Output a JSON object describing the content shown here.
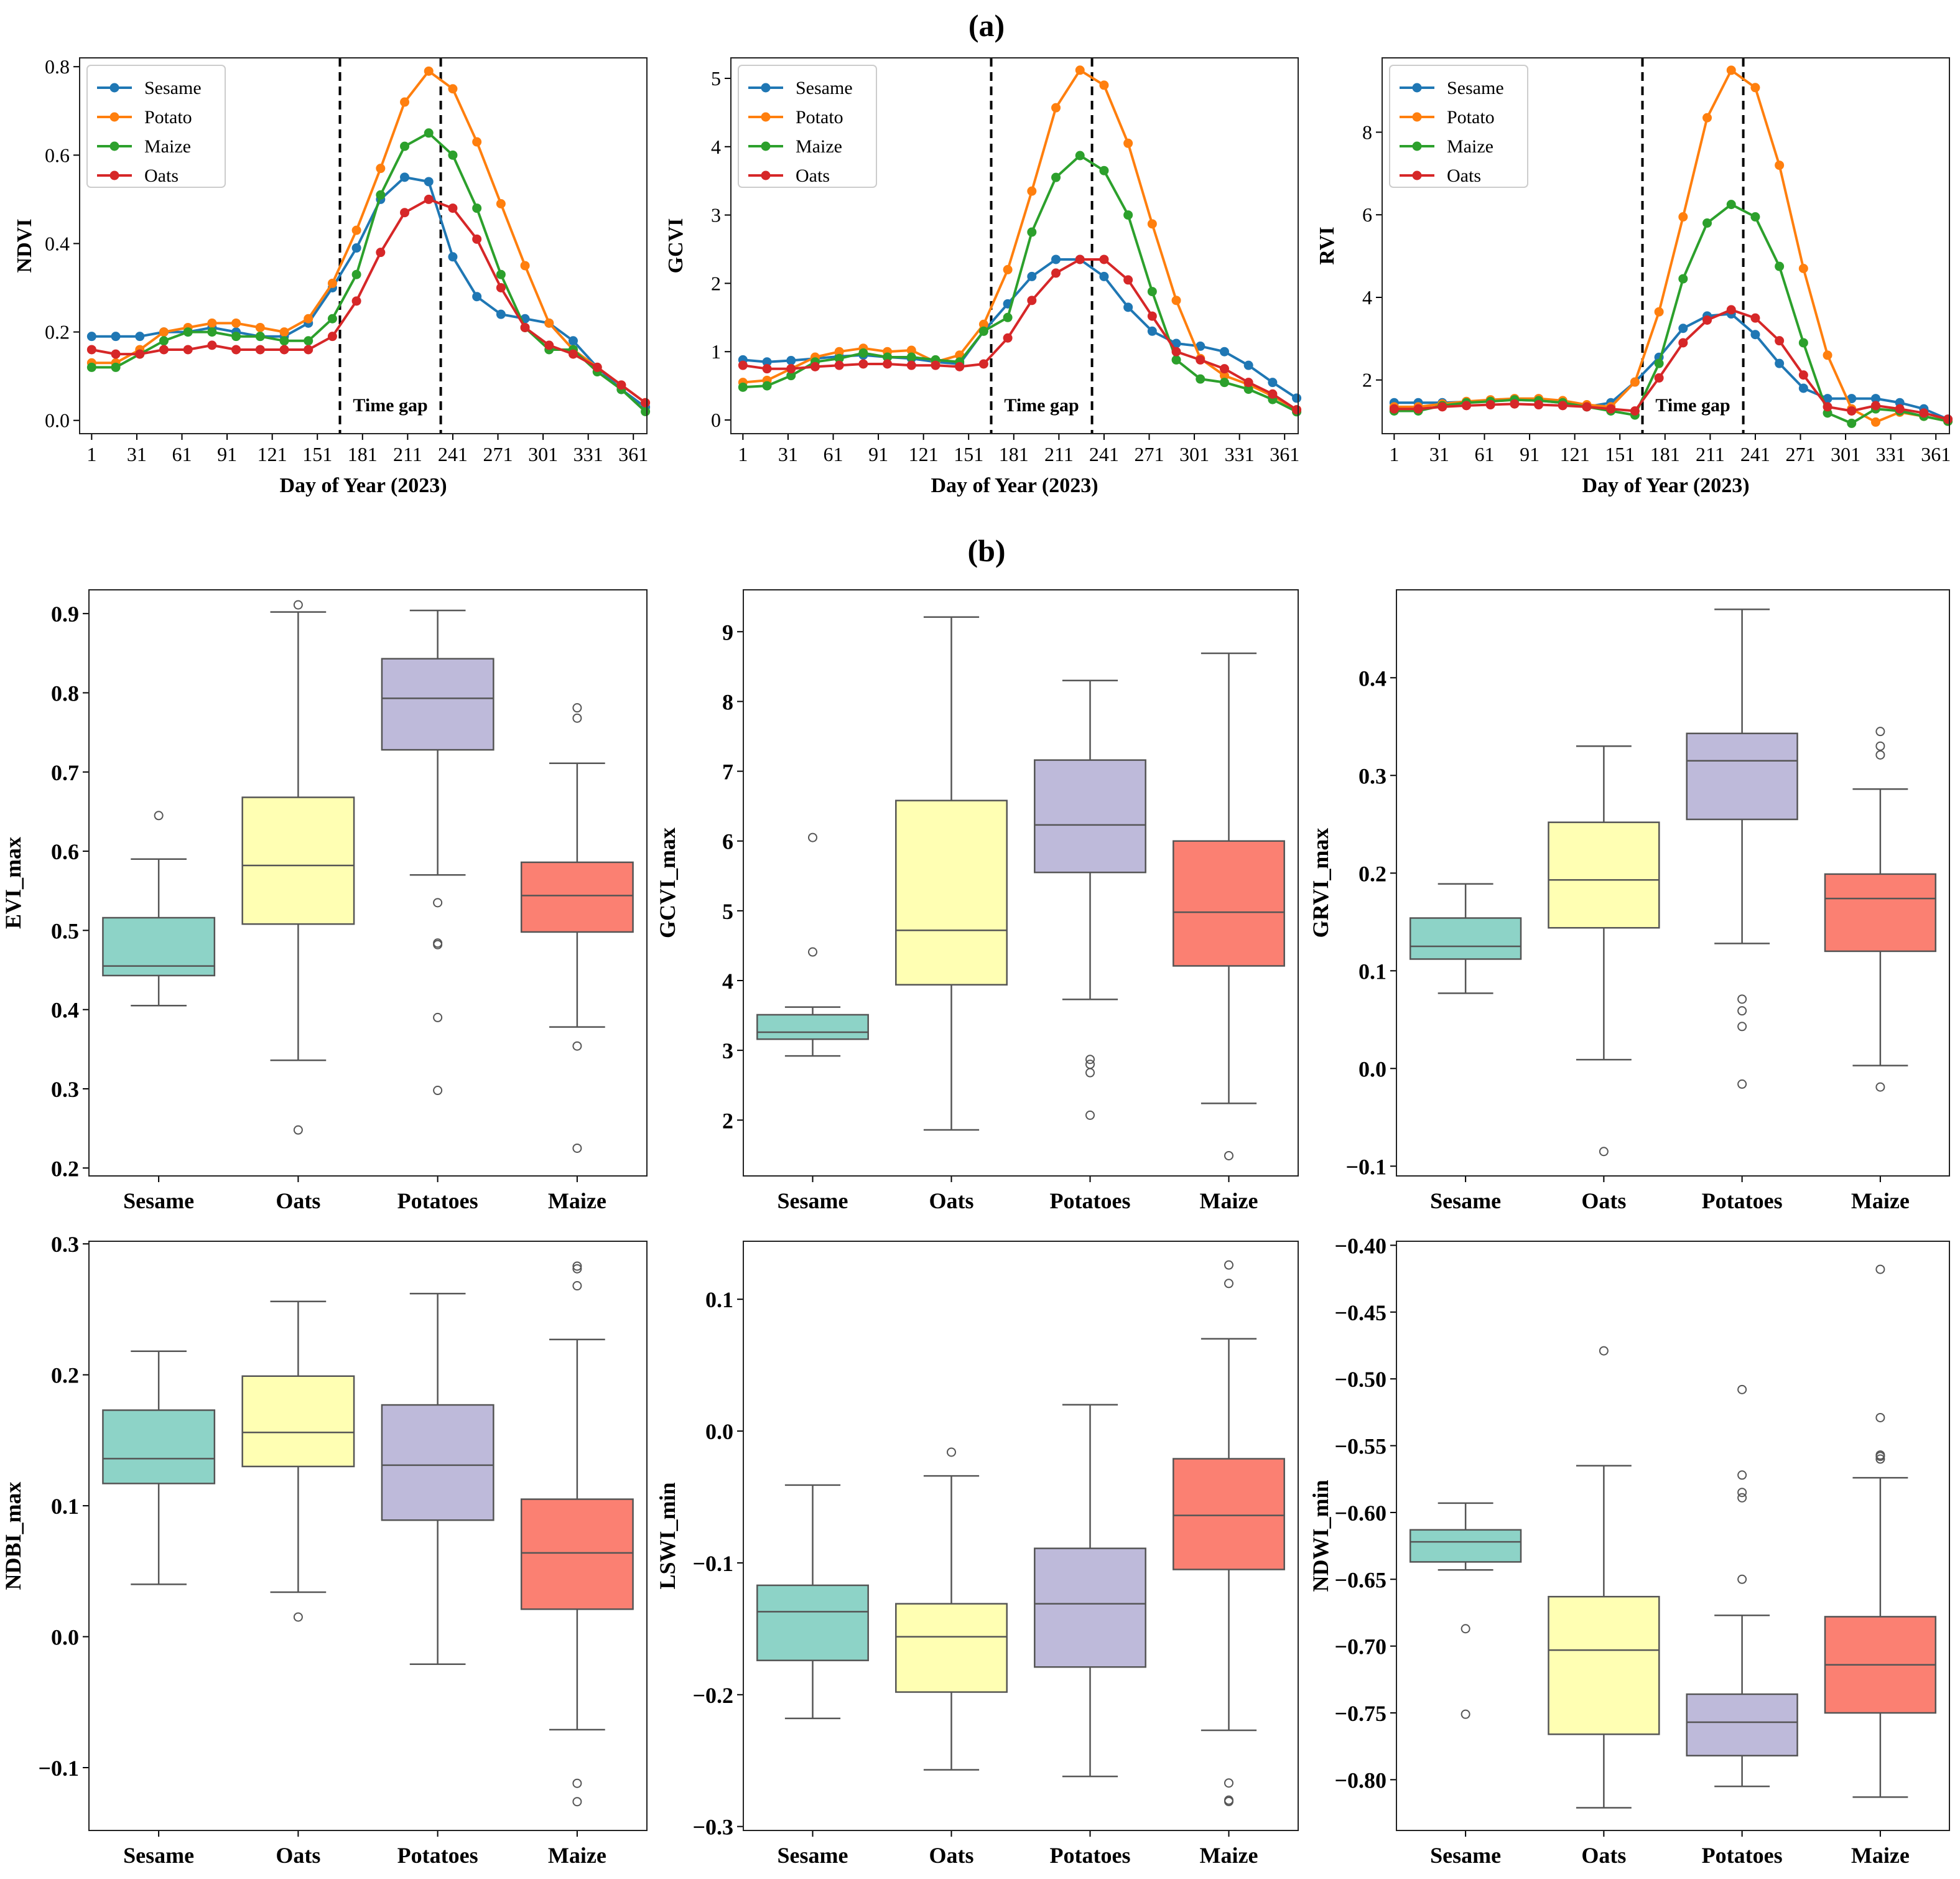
{
  "figure": {
    "label_a": "(a)",
    "label_b": "(b)",
    "colors": {
      "Sesame": "#1f77b4",
      "Potato": "#ff7f0e",
      "Maize": "#2ca02c",
      "Oats": "#d62728",
      "box_Sesame": "#8dd3c7",
      "box_Oats": "#ffffb3",
      "box_Potatoes": "#bebada",
      "box_Maize": "#fb8072"
    }
  },
  "chart_data": [
    {
      "type": "line",
      "id": "ndvi",
      "ylabel": "NDVI",
      "xlabel": "Day of Year (2023)",
      "xticks": [
        1,
        31,
        61,
        91,
        121,
        151,
        181,
        211,
        241,
        271,
        301,
        331,
        361
      ],
      "xlim": [
        -7,
        370
      ],
      "ylim": [
        -0.03,
        0.82
      ],
      "yticks": [
        0.0,
        0.2,
        0.4,
        0.6,
        0.8
      ],
      "yticklabels": [
        "0.0",
        "0.2",
        "0.4",
        "0.6",
        "0.8"
      ],
      "gap": [
        166,
        233
      ],
      "gap_label": "Time gap",
      "x": [
        1,
        17,
        33,
        49,
        65,
        81,
        97,
        113,
        129,
        145,
        161,
        177,
        193,
        209,
        225,
        241,
        257,
        273,
        289,
        305,
        321,
        337,
        353,
        369
      ],
      "series": [
        {
          "name": "Sesame",
          "values": [
            0.19,
            0.19,
            0.19,
            0.2,
            0.2,
            0.21,
            0.2,
            0.19,
            0.19,
            0.22,
            0.3,
            0.39,
            0.5,
            0.55,
            0.54,
            0.37,
            0.28,
            0.24,
            0.23,
            0.22,
            0.18,
            0.12,
            0.07,
            0.03
          ]
        },
        {
          "name": "Potato",
          "values": [
            0.13,
            0.13,
            0.16,
            0.2,
            0.21,
            0.22,
            0.22,
            0.21,
            0.2,
            0.23,
            0.31,
            0.43,
            0.57,
            0.72,
            0.79,
            0.75,
            0.63,
            0.49,
            0.35,
            0.22,
            0.16,
            0.12,
            0.08,
            0.04
          ]
        },
        {
          "name": "Maize",
          "values": [
            0.12,
            0.12,
            0.15,
            0.18,
            0.2,
            0.2,
            0.19,
            0.19,
            0.18,
            0.18,
            0.23,
            0.33,
            0.51,
            0.62,
            0.65,
            0.6,
            0.48,
            0.33,
            0.21,
            0.16,
            0.16,
            0.11,
            0.07,
            0.02
          ]
        },
        {
          "name": "Oats",
          "values": [
            0.16,
            0.15,
            0.15,
            0.16,
            0.16,
            0.17,
            0.16,
            0.16,
            0.16,
            0.16,
            0.19,
            0.27,
            0.38,
            0.47,
            0.5,
            0.48,
            0.41,
            0.3,
            0.21,
            0.17,
            0.15,
            0.12,
            0.08,
            0.04
          ]
        }
      ]
    },
    {
      "type": "line",
      "id": "gcvi",
      "ylabel": "GCVI",
      "xlabel": "Day of Year (2023)",
      "xticks": [
        1,
        31,
        61,
        91,
        121,
        151,
        181,
        211,
        241,
        271,
        301,
        331,
        361
      ],
      "xlim": [
        -7,
        370
      ],
      "ylim": [
        -0.2,
        5.3
      ],
      "yticks": [
        0,
        1,
        2,
        3,
        4,
        5
      ],
      "yticklabels": [
        "0",
        "1",
        "2",
        "3",
        "4",
        "5"
      ],
      "gap": [
        166,
        233
      ],
      "gap_label": "Time gap",
      "x": [
        1,
        17,
        33,
        49,
        65,
        81,
        97,
        113,
        129,
        145,
        161,
        177,
        193,
        209,
        225,
        241,
        257,
        273,
        289,
        305,
        321,
        337,
        353,
        369
      ],
      "series": [
        {
          "name": "Sesame",
          "values": [
            0.88,
            0.85,
            0.87,
            0.9,
            0.93,
            0.95,
            0.92,
            0.9,
            0.85,
            0.82,
            1.3,
            1.7,
            2.1,
            2.35,
            2.35,
            2.1,
            1.65,
            1.3,
            1.12,
            1.08,
            1.0,
            0.8,
            0.55,
            0.32
          ]
        },
        {
          "name": "Potato",
          "values": [
            0.55,
            0.58,
            0.75,
            0.92,
            1.0,
            1.05,
            1.0,
            1.02,
            0.85,
            0.95,
            1.4,
            2.2,
            3.35,
            4.57,
            5.12,
            4.9,
            4.05,
            2.87,
            1.75,
            0.9,
            0.65,
            0.52,
            0.35,
            0.15
          ]
        },
        {
          "name": "Maize",
          "values": [
            0.48,
            0.5,
            0.65,
            0.85,
            0.9,
            0.98,
            0.92,
            0.92,
            0.88,
            0.85,
            1.3,
            1.5,
            2.75,
            3.55,
            3.87,
            3.65,
            3.0,
            1.88,
            0.88,
            0.6,
            0.55,
            0.45,
            0.3,
            0.12
          ]
        },
        {
          "name": "Oats",
          "values": [
            0.8,
            0.75,
            0.75,
            0.78,
            0.8,
            0.82,
            0.82,
            0.8,
            0.8,
            0.78,
            0.82,
            1.2,
            1.75,
            2.15,
            2.35,
            2.35,
            2.05,
            1.52,
            1.0,
            0.88,
            0.75,
            0.55,
            0.38,
            0.15
          ]
        }
      ]
    },
    {
      "type": "line",
      "id": "rvi",
      "ylabel": "RVI",
      "xlabel": "Day of Year (2023)",
      "xticks": [
        1,
        31,
        61,
        91,
        121,
        151,
        181,
        211,
        241,
        271,
        301,
        331,
        361
      ],
      "xlim": [
        -7,
        370
      ],
      "ylim": [
        0.7,
        9.8
      ],
      "yticks": [
        2,
        4,
        6,
        8
      ],
      "yticklabels": [
        "2",
        "4",
        "6",
        "8"
      ],
      "gap": [
        166,
        233
      ],
      "gap_label": "Time gap",
      "x": [
        1,
        17,
        33,
        49,
        65,
        81,
        97,
        113,
        129,
        145,
        161,
        177,
        193,
        209,
        225,
        241,
        257,
        273,
        289,
        305,
        321,
        337,
        353,
        369
      ],
      "series": [
        {
          "name": "Sesame",
          "values": [
            1.45,
            1.45,
            1.45,
            1.47,
            1.5,
            1.52,
            1.5,
            1.45,
            1.35,
            1.45,
            1.95,
            2.55,
            3.25,
            3.55,
            3.6,
            3.1,
            2.4,
            1.8,
            1.55,
            1.55,
            1.55,
            1.45,
            1.3,
            1.05
          ]
        },
        {
          "name": "Potato",
          "values": [
            1.35,
            1.35,
            1.42,
            1.48,
            1.52,
            1.55,
            1.55,
            1.5,
            1.4,
            1.35,
            1.95,
            3.65,
            5.95,
            8.35,
            9.5,
            9.08,
            7.2,
            4.7,
            2.6,
            1.3,
            0.98,
            1.22,
            1.12,
            1.0
          ]
        },
        {
          "name": "Maize",
          "values": [
            1.25,
            1.25,
            1.38,
            1.45,
            1.48,
            1.52,
            1.5,
            1.45,
            1.35,
            1.25,
            1.15,
            2.4,
            4.45,
            5.8,
            6.25,
            5.95,
            4.75,
            2.9,
            1.2,
            0.95,
            1.3,
            1.25,
            1.12,
            1.0
          ]
        },
        {
          "name": "Oats",
          "values": [
            1.3,
            1.3,
            1.35,
            1.38,
            1.4,
            1.42,
            1.4,
            1.38,
            1.35,
            1.3,
            1.25,
            2.05,
            2.9,
            3.45,
            3.7,
            3.5,
            2.95,
            2.12,
            1.35,
            1.25,
            1.38,
            1.3,
            1.2,
            1.05
          ]
        }
      ]
    },
    {
      "type": "box",
      "id": "evi_max",
      "ylabel": "EVI_max",
      "ylim": [
        0.19,
        0.93
      ],
      "yticks": [
        0.2,
        0.3,
        0.4,
        0.5,
        0.6,
        0.7,
        0.8,
        0.9
      ],
      "yticklabels": [
        "0.2",
        "0.3",
        "0.4",
        "0.5",
        "0.6",
        "0.7",
        "0.8",
        "0.9"
      ],
      "categories": [
        "Sesame",
        "Oats",
        "Potatoes",
        "Maize"
      ],
      "boxes": [
        {
          "name": "Sesame",
          "whislo": 0.405,
          "q1": 0.443,
          "med": 0.455,
          "q3": 0.516,
          "whishi": 0.59,
          "fliers": [
            0.645
          ]
        },
        {
          "name": "Oats",
          "whislo": 0.336,
          "q1": 0.508,
          "med": 0.582,
          "q3": 0.668,
          "whishi": 0.902,
          "fliers": [
            0.911,
            0.248
          ]
        },
        {
          "name": "Potatoes",
          "whislo": 0.57,
          "q1": 0.728,
          "med": 0.793,
          "q3": 0.843,
          "whishi": 0.904,
          "fliers": [
            0.535,
            0.484,
            0.482,
            0.39,
            0.298
          ]
        },
        {
          "name": "Maize",
          "whislo": 0.378,
          "q1": 0.498,
          "med": 0.544,
          "q3": 0.586,
          "whishi": 0.711,
          "fliers": [
            0.781,
            0.768,
            0.354,
            0.225
          ]
        }
      ]
    },
    {
      "type": "box",
      "id": "gcvi_max",
      "ylabel": "GCVI_max",
      "ylim": [
        1.2,
        9.6
      ],
      "yticks": [
        2,
        3,
        4,
        5,
        6,
        7,
        8,
        9
      ],
      "yticklabels": [
        "2",
        "3",
        "4",
        "5",
        "6",
        "7",
        "8",
        "9"
      ],
      "categories": [
        "Sesame",
        "Oats",
        "Potatoes",
        "Maize"
      ],
      "boxes": [
        {
          "name": "Sesame",
          "whislo": 2.92,
          "q1": 3.16,
          "med": 3.26,
          "q3": 3.51,
          "whishi": 3.62,
          "fliers": [
            6.05,
            4.41
          ]
        },
        {
          "name": "Oats",
          "whislo": 1.86,
          "q1": 3.94,
          "med": 4.72,
          "q3": 6.58,
          "whishi": 9.21,
          "fliers": []
        },
        {
          "name": "Potatoes",
          "whislo": 3.73,
          "q1": 5.55,
          "med": 6.23,
          "q3": 7.16,
          "whishi": 8.3,
          "fliers": [
            2.87,
            2.8,
            2.68,
            2.07
          ]
        },
        {
          "name": "Maize",
          "whislo": 2.24,
          "q1": 4.21,
          "med": 4.98,
          "q3": 6.0,
          "whishi": 8.69,
          "fliers": [
            1.49
          ]
        }
      ]
    },
    {
      "type": "box",
      "id": "grvi_max",
      "ylabel": "GRVI_max",
      "ylim": [
        -0.11,
        0.49
      ],
      "yticks": [
        -0.1,
        0.0,
        0.1,
        0.2,
        0.3,
        0.4
      ],
      "yticklabels": [
        "−0.1",
        "0.0",
        "0.1",
        "0.2",
        "0.3",
        "0.4"
      ],
      "categories": [
        "Sesame",
        "Oats",
        "Potatoes",
        "Maize"
      ],
      "boxes": [
        {
          "name": "Sesame",
          "whislo": 0.077,
          "q1": 0.112,
          "med": 0.125,
          "q3": 0.154,
          "whishi": 0.189,
          "fliers": []
        },
        {
          "name": "Oats",
          "whislo": 0.009,
          "q1": 0.144,
          "med": 0.193,
          "q3": 0.252,
          "whishi": 0.33,
          "fliers": [
            -0.085
          ]
        },
        {
          "name": "Potatoes",
          "whislo": 0.128,
          "q1": 0.255,
          "med": 0.315,
          "q3": 0.343,
          "whishi": 0.47,
          "fliers": [
            0.071,
            0.059,
            0.043,
            -0.016
          ]
        },
        {
          "name": "Maize",
          "whislo": 0.003,
          "q1": 0.12,
          "med": 0.174,
          "q3": 0.199,
          "whishi": 0.286,
          "fliers": [
            0.345,
            0.33,
            0.321,
            -0.019
          ]
        }
      ]
    },
    {
      "type": "box",
      "id": "ndbi_max",
      "ylabel": "NDBI_max",
      "ylim": [
        -0.148,
        0.302
      ],
      "yticks": [
        -0.1,
        0.0,
        0.1,
        0.2,
        0.3
      ],
      "yticklabels": [
        "−0.1",
        "0.0",
        "0.1",
        "0.2",
        "0.3"
      ],
      "categories": [
        "Sesame",
        "Oats",
        "Potatoes",
        "Maize"
      ],
      "boxes": [
        {
          "name": "Sesame",
          "whislo": 0.04,
          "q1": 0.117,
          "med": 0.136,
          "q3": 0.173,
          "whishi": 0.218,
          "fliers": []
        },
        {
          "name": "Oats",
          "whislo": 0.034,
          "q1": 0.13,
          "med": 0.156,
          "q3": 0.199,
          "whishi": 0.256,
          "fliers": [
            0.015
          ]
        },
        {
          "name": "Potatoes",
          "whislo": -0.021,
          "q1": 0.089,
          "med": 0.131,
          "q3": 0.177,
          "whishi": 0.262,
          "fliers": []
        },
        {
          "name": "Maize",
          "whislo": -0.071,
          "q1": 0.021,
          "med": 0.064,
          "q3": 0.105,
          "whishi": 0.227,
          "fliers": [
            0.283,
            0.281,
            0.268,
            -0.112,
            -0.126
          ]
        }
      ]
    },
    {
      "type": "box",
      "id": "lswi_min",
      "ylabel": "LSWI_min",
      "ylim": [
        -0.303,
        0.144
      ],
      "yticks": [
        -0.3,
        -0.2,
        -0.1,
        0.0,
        0.1
      ],
      "yticklabels": [
        "−0.3",
        "−0.2",
        "−0.1",
        "0.0",
        "0.1"
      ],
      "categories": [
        "Sesame",
        "Oats",
        "Potatoes",
        "Maize"
      ],
      "boxes": [
        {
          "name": "Sesame",
          "whislo": -0.218,
          "q1": -0.174,
          "med": -0.137,
          "q3": -0.117,
          "whishi": -0.041,
          "fliers": []
        },
        {
          "name": "Oats",
          "whislo": -0.257,
          "q1": -0.198,
          "med": -0.156,
          "q3": -0.131,
          "whishi": -0.034,
          "fliers": [
            -0.016
          ]
        },
        {
          "name": "Potatoes",
          "whislo": -0.262,
          "q1": -0.179,
          "med": -0.131,
          "q3": -0.089,
          "whishi": 0.02,
          "fliers": []
        },
        {
          "name": "Maize",
          "whislo": -0.227,
          "q1": -0.105,
          "med": -0.064,
          "q3": -0.021,
          "whishi": 0.07,
          "fliers": [
            0.126,
            0.112,
            -0.267,
            -0.28,
            -0.281
          ]
        }
      ]
    },
    {
      "type": "box",
      "id": "ndwi_min",
      "ylabel": "NDWI_min",
      "ylim": [
        -0.838,
        -0.397
      ],
      "yticks": [
        -0.8,
        -0.75,
        -0.7,
        -0.65,
        -0.6,
        -0.55,
        -0.5,
        -0.45,
        -0.4
      ],
      "yticklabels": [
        "−0.80",
        "−0.75",
        "−0.70",
        "−0.65",
        "−0.60",
        "−0.55",
        "−0.50",
        "−0.45",
        "−0.40"
      ],
      "categories": [
        "Sesame",
        "Oats",
        "Potatoes",
        "Maize"
      ],
      "boxes": [
        {
          "name": "Sesame",
          "whislo": -0.643,
          "q1": -0.637,
          "med": -0.622,
          "q3": -0.613,
          "whishi": -0.593,
          "fliers": [
            -0.687,
            -0.751
          ]
        },
        {
          "name": "Oats",
          "whislo": -0.821,
          "q1": -0.766,
          "med": -0.703,
          "q3": -0.663,
          "whishi": -0.565,
          "fliers": [
            -0.479
          ]
        },
        {
          "name": "Potatoes",
          "whislo": -0.805,
          "q1": -0.782,
          "med": -0.757,
          "q3": -0.736,
          "whishi": -0.677,
          "fliers": [
            -0.508,
            -0.572,
            -0.585,
            -0.589,
            -0.65
          ]
        },
        {
          "name": "Maize",
          "whislo": -0.813,
          "q1": -0.75,
          "med": -0.714,
          "q3": -0.678,
          "whishi": -0.574,
          "fliers": [
            -0.418,
            -0.529,
            -0.557,
            -0.558,
            -0.56
          ]
        }
      ]
    }
  ]
}
